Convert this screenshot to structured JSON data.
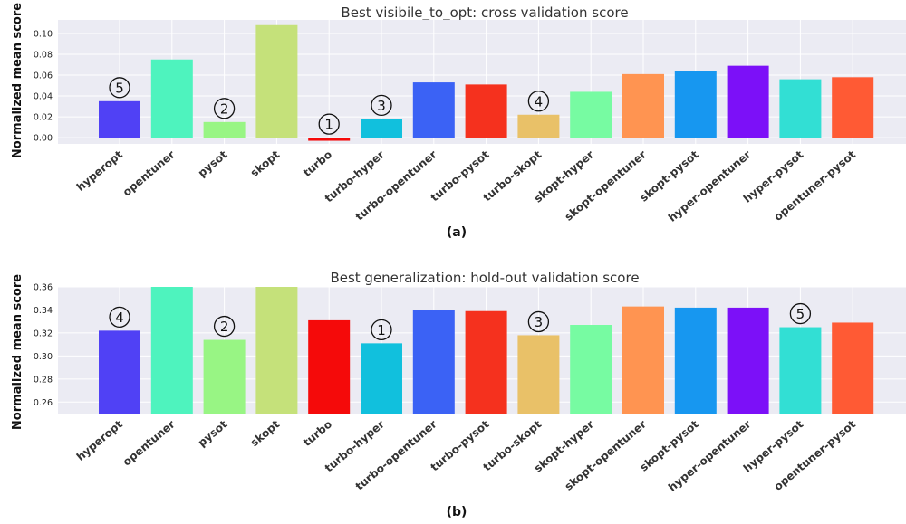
{
  "chart_data": [
    {
      "type": "bar",
      "title": "Best visibile_to_opt: cross validation score",
      "ylabel": "Normalized mean score",
      "panel_label": "(a)",
      "categories": [
        "hyperopt",
        "opentuner",
        "pysot",
        "skopt",
        "turbo",
        "turbo-hyper",
        "turbo-opentuner",
        "turbo-pysot",
        "turbo-skopt",
        "skopt-hyper",
        "skopt-opentuner",
        "skopt-pysot",
        "hyper-opentuner",
        "hyper-pysot",
        "opentuner-pysot"
      ],
      "values": [
        0.035,
        0.075,
        0.015,
        0.108,
        -0.003,
        0.018,
        0.053,
        0.051,
        0.022,
        0.044,
        0.061,
        0.064,
        0.069,
        0.056,
        0.058
      ],
      "ylim": [
        -0.006,
        0.113
      ],
      "yticks": [
        0.0,
        0.02,
        0.04,
        0.06,
        0.08,
        0.1
      ],
      "ytick_labels": [
        "0.00",
        "0.02",
        "0.04",
        "0.06",
        "0.08",
        "0.10"
      ],
      "grid": true,
      "ranks": [
        {
          "category": "hyperopt",
          "label": "5"
        },
        {
          "category": "pysot",
          "label": "2"
        },
        {
          "category": "turbo",
          "label": "1"
        },
        {
          "category": "turbo-hyper",
          "label": "3"
        },
        {
          "category": "turbo-skopt",
          "label": "4"
        }
      ]
    },
    {
      "type": "bar",
      "title": "Best generalization: hold-out validation score",
      "ylabel": "Normalized mean score",
      "panel_label": "(b)",
      "categories": [
        "hyperopt",
        "opentuner",
        "pysot",
        "skopt",
        "turbo",
        "turbo-hyper",
        "turbo-opentuner",
        "turbo-pysot",
        "turbo-skopt",
        "skopt-hyper",
        "skopt-opentuner",
        "skopt-pysot",
        "hyper-opentuner",
        "hyper-pysot",
        "opentuner-pysot"
      ],
      "values": [
        0.322,
        0.36,
        0.314,
        0.36,
        0.331,
        0.311,
        0.34,
        0.339,
        0.318,
        0.327,
        0.343,
        0.342,
        0.342,
        0.325,
        0.329
      ],
      "ylim": [
        0.25,
        0.36
      ],
      "yticks": [
        0.26,
        0.28,
        0.3,
        0.32,
        0.34,
        0.36
      ],
      "ytick_labels": [
        "0.26",
        "0.28",
        "0.30",
        "0.32",
        "0.34",
        "0.36"
      ],
      "grid": true,
      "ranks": [
        {
          "category": "hyperopt",
          "label": "4"
        },
        {
          "category": "pysot",
          "label": "2"
        },
        {
          "category": "turbo-hyper",
          "label": "1"
        },
        {
          "category": "turbo-skopt",
          "label": "3"
        },
        {
          "category": "hyper-pysot",
          "label": "5"
        }
      ]
    }
  ],
  "colors": {
    "background": "#ebebf3",
    "grid": "#ffffff",
    "bars": [
      "#5041f5",
      "#4ef3be",
      "#98f584",
      "#c5e17a",
      "#f50a0a",
      "#11c0dd",
      "#3b62f5",
      "#f5311e",
      "#e9c168",
      "#77fba2",
      "#ff9451",
      "#1797f0",
      "#7c10f8",
      "#32dfd4",
      "#ff5a34"
    ]
  }
}
